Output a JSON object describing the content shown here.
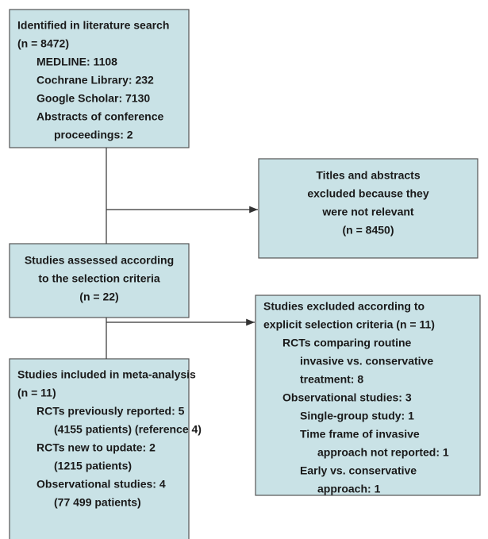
{
  "boxes": [
    {
      "lines": [
        "Identified in literature search",
        "(n = 8472)",
        "MEDLINE: 1108",
        "Cochrane Library: 232",
        "Google Scholar: 7130",
        "Abstracts of conference",
        "proceedings: 2"
      ]
    },
    {
      "lines": [
        "Titles and abstracts",
        "excluded because they",
        "were not relevant",
        "(n = 8450)"
      ]
    },
    {
      "lines": [
        "Studies assessed according",
        "to the selection criteria",
        "(n = 22)"
      ]
    },
    {
      "lines": [
        "Studies excluded according to",
        "explicit selection criteria (n = 11)",
        "RCTs comparing routine",
        "invasive vs. conservative",
        "treatment: 8",
        "Observational studies: 3",
        "Single-group study: 1",
        "Time frame of invasive",
        "approach not reported: 1",
        "Early vs. conservative",
        "approach: 1"
      ]
    },
    {
      "lines": [
        "Studies included in meta-analysis",
        "(n = 11)",
        "RCTs previously reported: 5",
        "(4155 patients) (reference 4)",
        "RCTs new to update: 2",
        "(1215 patients)",
        "Observational studies: 4",
        "(77 499 patients)"
      ]
    }
  ]
}
